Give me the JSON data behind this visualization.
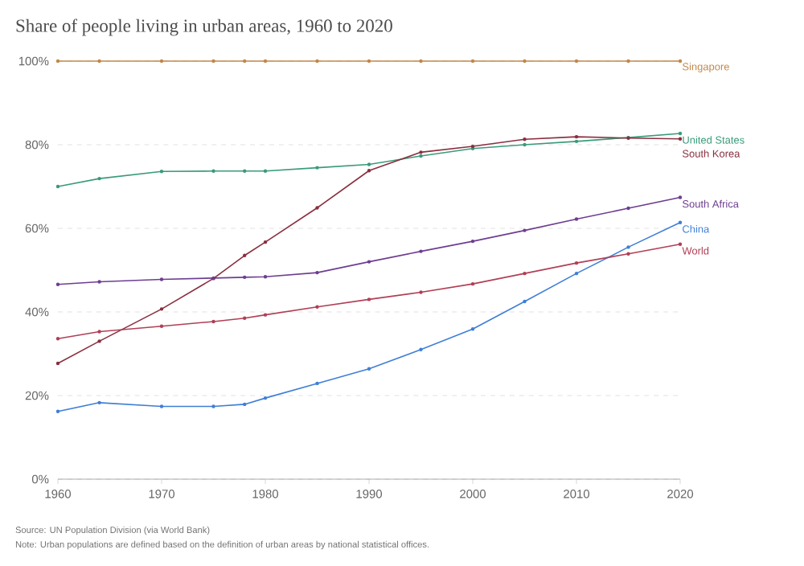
{
  "chart_data": {
    "type": "line",
    "title": "Share of people living in urban areas, 1960 to 2020",
    "annotations": [
      "Source: UN Population Division (via World Bank)",
      "Note: Urban populations are defined based on the definition of urban areas by national statistical offices."
    ],
    "x": [
      1960,
      1964,
      1970,
      1975,
      1978,
      1980,
      1985,
      1990,
      1995,
      2000,
      2005,
      2010,
      2015,
      2020
    ],
    "series": [
      {
        "name": "Singapore",
        "color": "#c2884a",
        "values": [
          100,
          100,
          100,
          100,
          100,
          100,
          100,
          100,
          100,
          100,
          100,
          100,
          100,
          100
        ]
      },
      {
        "name": "United States",
        "color": "#3a9b79",
        "values": [
          70,
          71.9,
          73.6,
          73.7,
          73.7,
          73.7,
          74.5,
          75.3,
          77.3,
          79.1,
          80,
          80.8,
          81.7,
          82.7
        ]
      },
      {
        "name": "South Korea",
        "color": "#8a2f3f",
        "values": [
          27.7,
          33,
          40.7,
          48,
          53.5,
          56.7,
          64.9,
          73.8,
          78.2,
          79.6,
          81.3,
          81.9,
          81.6,
          81.4
        ]
      },
      {
        "name": "South Africa",
        "color": "#6d3e91",
        "values": [
          46.6,
          47.2,
          47.8,
          48.1,
          48.3,
          48.4,
          49.4,
          52,
          54.5,
          56.9,
          59.5,
          62.2,
          64.8,
          67.4
        ]
      },
      {
        "name": "China",
        "color": "#3f7fd6",
        "values": [
          16.2,
          18.3,
          17.4,
          17.4,
          17.9,
          19.4,
          22.9,
          26.4,
          31,
          35.9,
          42.5,
          49.2,
          55.5,
          61.4
        ]
      },
      {
        "name": "World",
        "color": "#b13f55",
        "values": [
          33.6,
          35.3,
          36.6,
          37.7,
          38.5,
          39.3,
          41.2,
          43,
          44.7,
          46.7,
          49.2,
          51.7,
          53.9,
          56.2
        ]
      }
    ],
    "xlim": [
      1960,
      2020
    ],
    "ylim": [
      0,
      100
    ],
    "xticks": [
      1960,
      1970,
      1980,
      1990,
      2000,
      2010,
      2020
    ],
    "yticks": [
      {
        "value": 0,
        "label": "0%"
      },
      {
        "value": 20,
        "label": "20%"
      },
      {
        "value": 40,
        "label": "40%"
      },
      {
        "value": 60,
        "label": "60%"
      },
      {
        "value": 80,
        "label": "80%"
      },
      {
        "value": 100,
        "label": "100%"
      }
    ],
    "grid": "y",
    "marker": "circle",
    "line_style": "solid"
  }
}
